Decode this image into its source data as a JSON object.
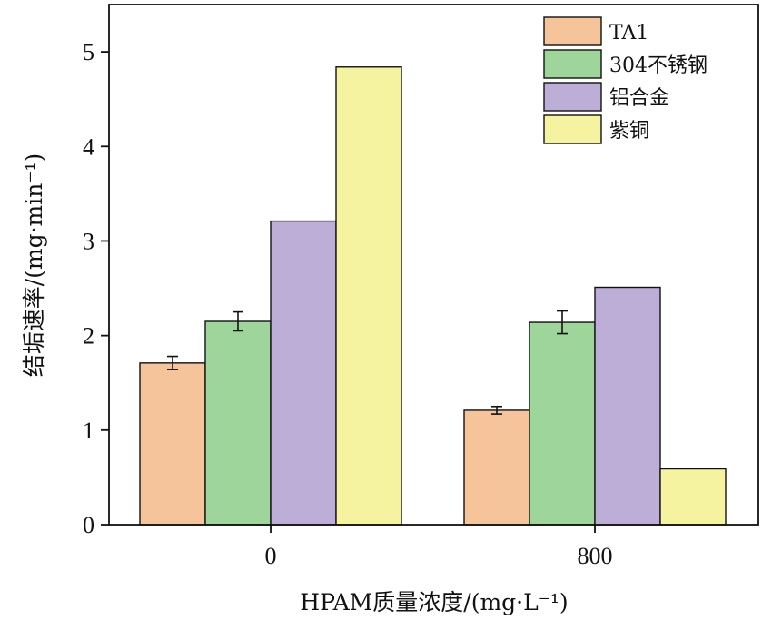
{
  "chart_data": {
    "type": "bar",
    "categories": [
      "0",
      "800"
    ],
    "series": [
      {
        "name": "TA1",
        "values": [
          1.71,
          1.21
        ],
        "errors": [
          0.07,
          0.04
        ],
        "color": "#F6C49A"
      },
      {
        "name": "304不锈钢",
        "values": [
          2.15,
          2.14
        ],
        "errors": [
          0.1,
          0.12
        ],
        "color": "#9ED59A"
      },
      {
        "name": "铝合金",
        "values": [
          3.21,
          2.51
        ],
        "errors": [
          0,
          0
        ],
        "color": "#BCAED6"
      },
      {
        "name": "紫铜",
        "values": [
          4.84,
          0.59
        ],
        "errors": [
          0,
          0
        ],
        "color": "#F5F3A0"
      }
    ],
    "xlabel": "HPAM质量浓度/(mg·L⁻¹)",
    "ylabel": "结垢速率/(mg·min⁻¹)",
    "ylim": [
      0,
      5.5
    ],
    "yticks": [
      "0",
      "1",
      "2",
      "3",
      "4",
      "5"
    ],
    "grid": false,
    "legend": "top-right"
  }
}
